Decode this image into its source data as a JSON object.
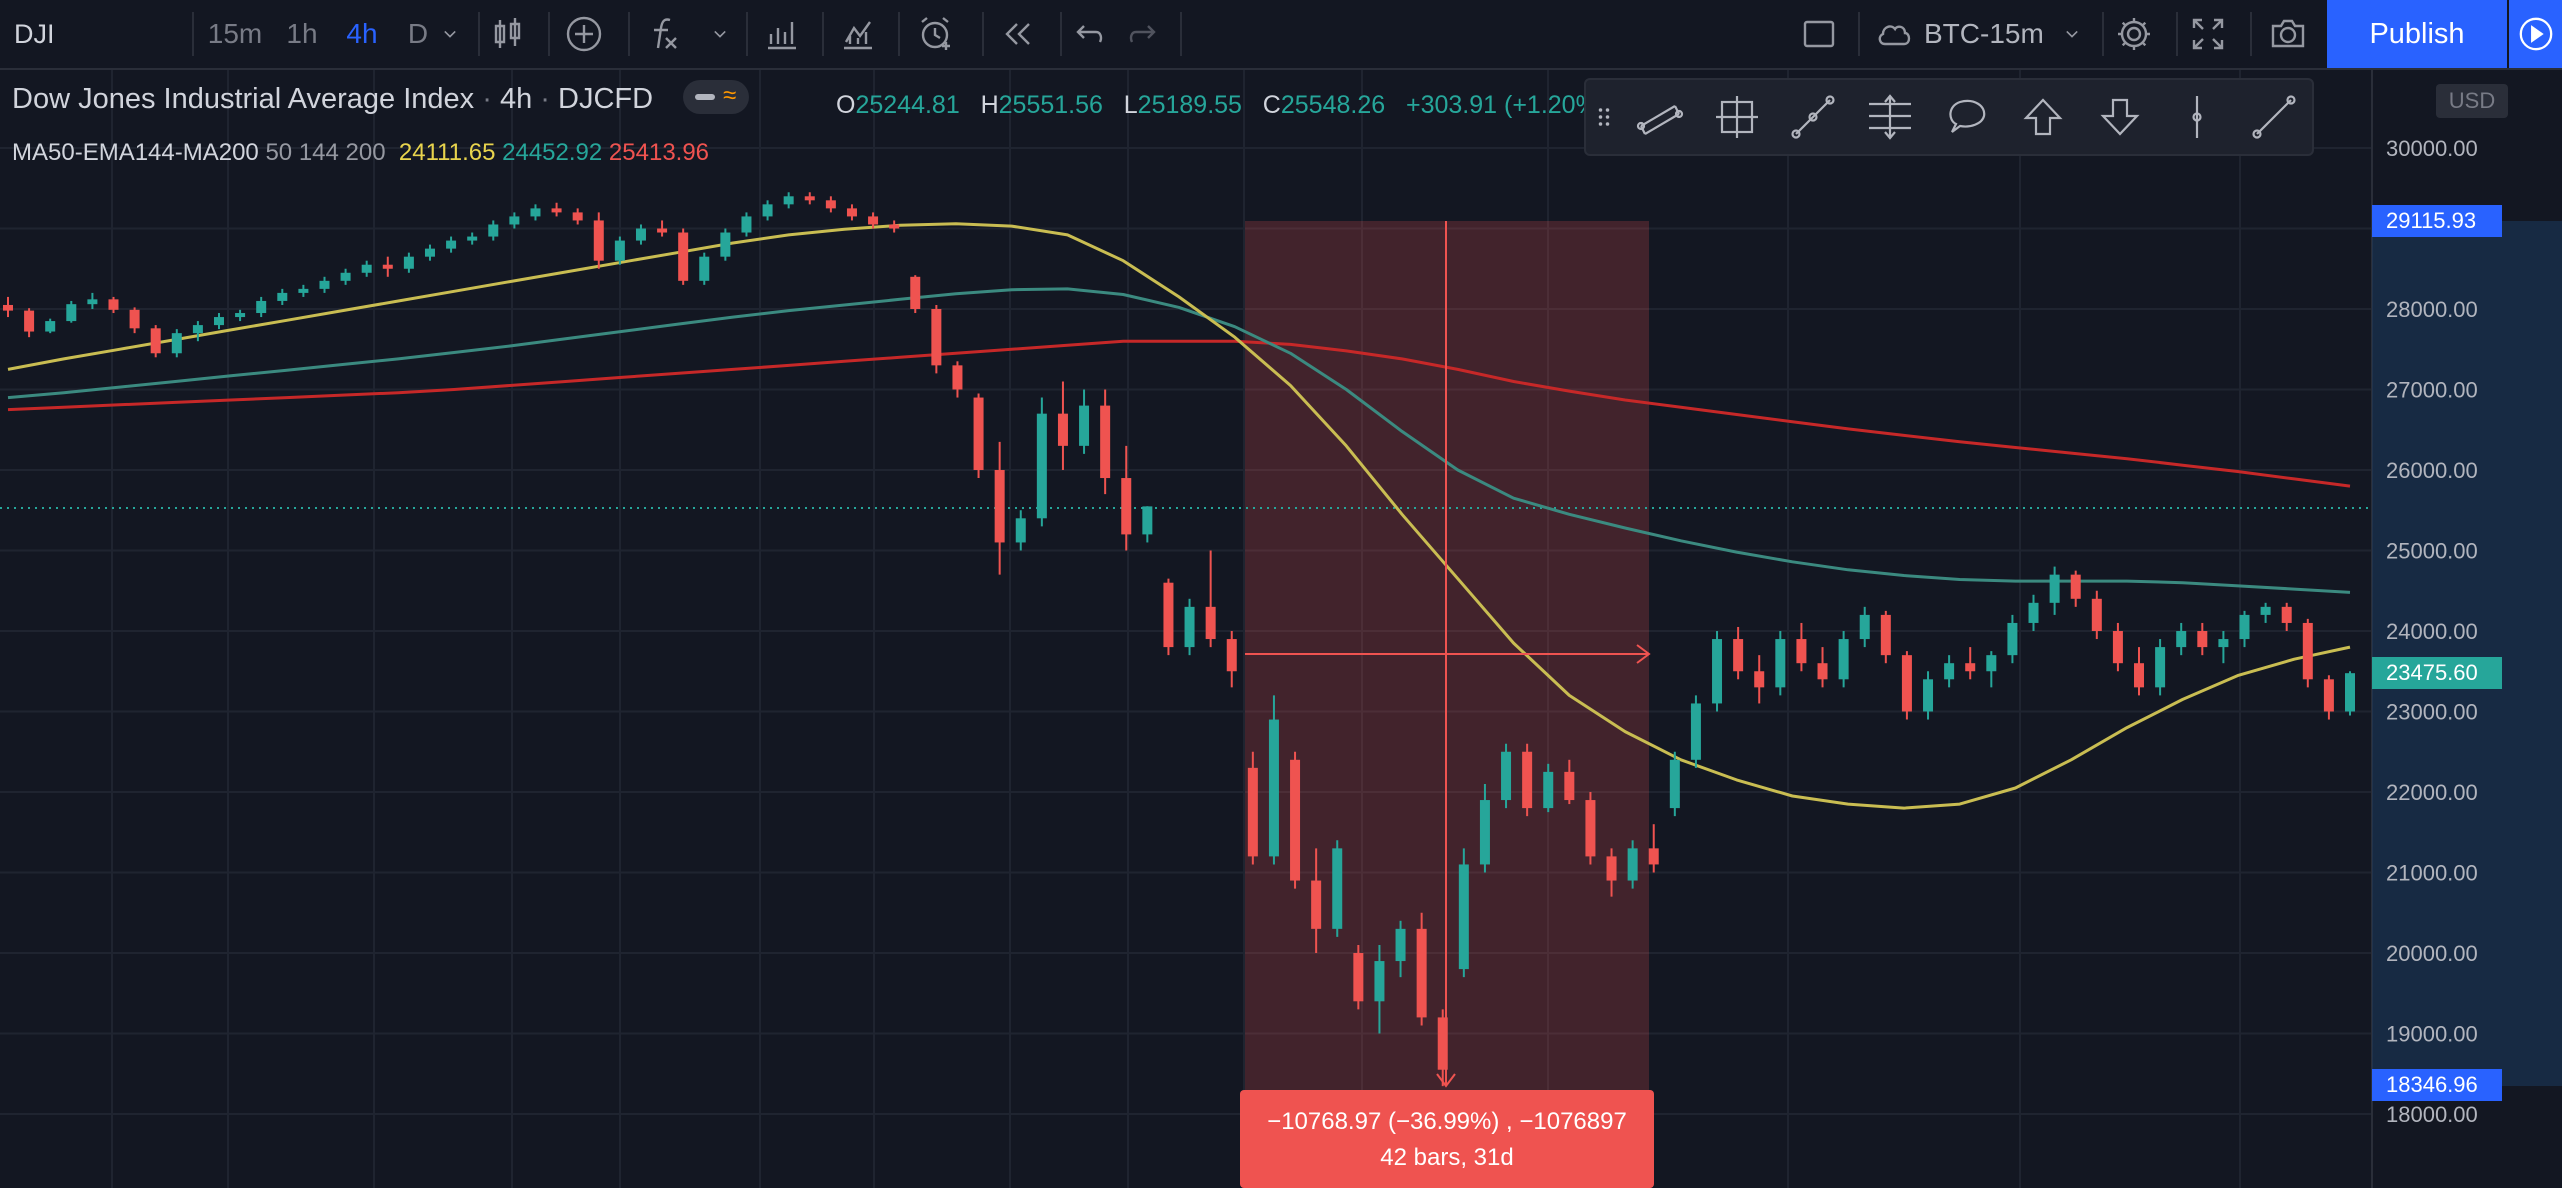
{
  "toolbar": {
    "symbol": "DJI",
    "intervals": [
      "15m",
      "1h",
      "4h",
      "D"
    ],
    "active_interval": "4h",
    "layout_name": "BTC-15m",
    "publish_label": "Publish"
  },
  "legend": {
    "title": "Dow Jones Industrial Average Index",
    "interval": "4h",
    "exchange": "DJCFD",
    "open_label": "O",
    "open": "25244.81",
    "high_label": "H",
    "high": "25551.56",
    "low_label": "L",
    "low": "25189.55",
    "close_label": "C",
    "close": "25548.26",
    "change": "+303.91 (+1.20%)",
    "indicator_name": "MA50-EMA144-MA200",
    "indicator_params": "50 144 200",
    "ma50_value": "24111.65",
    "ema144_value": "24452.92",
    "ma200_value": "25413.96"
  },
  "price_scale": {
    "currency": "USD",
    "ticks": [
      "30000.00",
      "28000.00",
      "27000.00",
      "26000.00",
      "25000.00",
      "24000.00",
      "23000.00",
      "22000.00",
      "21000.00",
      "20000.00",
      "19000.00",
      "18000.00"
    ],
    "label_high": "29115.93",
    "label_last": "23475.60",
    "label_low": "18346.96"
  },
  "measure_tool": {
    "line1": "−10768.97 (−36.99%) , −1076897",
    "line2": "42 bars, 31d"
  },
  "colors": {
    "background": "#131722",
    "up": "#26a69a",
    "down": "#ef5350",
    "ma50": "#c9bd52",
    "ema144": "#3b8a80",
    "ma200": "#c62828",
    "accent": "#2962ff"
  },
  "drawing_tools": [
    "trend-angle",
    "fixed-range-volume",
    "path",
    "fib-retracement",
    "callout",
    "arrow-up",
    "arrow-down",
    "vertical-line",
    "ray"
  ],
  "chart_data": {
    "type": "candlestick",
    "y_range": [
      17700,
      30650
    ],
    "price_levels": {
      "high": 29115.93,
      "last": 23475.6,
      "low": 18346.96,
      "dotted_line": 25548.26
    },
    "candles_ohlc": [
      [
        28050,
        28150,
        27900,
        27980
      ],
      [
        27980,
        28010,
        27650,
        27720
      ],
      [
        27720,
        27880,
        27700,
        27850
      ],
      [
        27850,
        28100,
        27830,
        28060
      ],
      [
        28060,
        28200,
        28000,
        28120
      ],
      [
        28120,
        28150,
        27950,
        27990
      ],
      [
        27990,
        28020,
        27700,
        27760
      ],
      [
        27760,
        27800,
        27400,
        27450
      ],
      [
        27450,
        27750,
        27400,
        27700
      ],
      [
        27700,
        27850,
        27600,
        27800
      ],
      [
        27800,
        27950,
        27750,
        27900
      ],
      [
        27900,
        27990,
        27850,
        27950
      ],
      [
        27950,
        28150,
        27900,
        28100
      ],
      [
        28100,
        28250,
        28050,
        28200
      ],
      [
        28200,
        28300,
        28150,
        28250
      ],
      [
        28250,
        28400,
        28200,
        28350
      ],
      [
        28350,
        28500,
        28300,
        28450
      ],
      [
        28450,
        28600,
        28400,
        28550
      ],
      [
        28550,
        28650,
        28400,
        28500
      ],
      [
        28500,
        28700,
        28450,
        28650
      ],
      [
        28650,
        28800,
        28600,
        28750
      ],
      [
        28750,
        28900,
        28700,
        28850
      ],
      [
        28850,
        28950,
        28800,
        28900
      ],
      [
        28900,
        29100,
        28850,
        29050
      ],
      [
        29050,
        29200,
        29000,
        29150
      ],
      [
        29150,
        29300,
        29100,
        29250
      ],
      [
        29250,
        29320,
        29150,
        29200
      ],
      [
        29200,
        29250,
        29050,
        29100
      ],
      [
        29100,
        29200,
        28500,
        28600
      ],
      [
        28600,
        28900,
        28550,
        28850
      ],
      [
        28850,
        29050,
        28800,
        29000
      ],
      [
        29000,
        29100,
        28900,
        28950
      ],
      [
        28950,
        29000,
        28300,
        28350
      ],
      [
        28350,
        28700,
        28300,
        28650
      ],
      [
        28650,
        29000,
        28600,
        28950
      ],
      [
        28950,
        29200,
        28900,
        29150
      ],
      [
        29150,
        29350,
        29100,
        29300
      ],
      [
        29300,
        29450,
        29250,
        29400
      ],
      [
        29400,
        29450,
        29300,
        29350
      ],
      [
        29350,
        29400,
        29200,
        29250
      ],
      [
        29250,
        29300,
        29100,
        29150
      ],
      [
        29150,
        29200,
        29000,
        29050
      ],
      [
        29050,
        29100,
        28950,
        29000
      ],
      [
        28400,
        28420,
        27950,
        28000
      ],
      [
        28000,
        28050,
        27200,
        27300
      ],
      [
        27300,
        27350,
        26900,
        27000
      ],
      [
        26900,
        26950,
        25900,
        26000
      ],
      [
        26000,
        26350,
        24700,
        25100
      ],
      [
        25100,
        25500,
        25000,
        25400
      ],
      [
        25400,
        26900,
        25300,
        26700
      ],
      [
        26700,
        27100,
        26000,
        26300
      ],
      [
        26300,
        27000,
        26200,
        26800
      ],
      [
        26800,
        27000,
        25700,
        25900
      ],
      [
        25900,
        26300,
        25000,
        25200
      ],
      [
        25200,
        25550,
        25100,
        25548
      ],
      [
        24600,
        24650,
        23700,
        23800
      ],
      [
        23800,
        24400,
        23700,
        24300
      ],
      [
        24300,
        25000,
        23800,
        23900
      ],
      [
        23900,
        24000,
        23300,
        23500
      ],
      [
        22300,
        22500,
        21100,
        21200
      ],
      [
        21200,
        23200,
        21100,
        22900
      ],
      [
        22400,
        22500,
        20800,
        20900
      ],
      [
        20900,
        21300,
        20000,
        20300
      ],
      [
        20300,
        21400,
        20200,
        21300
      ],
      [
        20000,
        20100,
        19300,
        19400
      ],
      [
        19400,
        20100,
        19000,
        19900
      ],
      [
        19900,
        20400,
        19700,
        20300
      ],
      [
        20300,
        20500,
        19100,
        19200
      ],
      [
        19200,
        19300,
        18346,
        18550
      ],
      [
        19800,
        21300,
        19700,
        21100
      ],
      [
        21100,
        22100,
        21000,
        21900
      ],
      [
        21900,
        22600,
        21800,
        22500
      ],
      [
        22500,
        22600,
        21700,
        21800
      ],
      [
        21800,
        22350,
        21750,
        22250
      ],
      [
        22250,
        22400,
        21850,
        21900
      ],
      [
        21900,
        22000,
        21100,
        21200
      ],
      [
        21200,
        21300,
        20700,
        20900
      ],
      [
        20900,
        21400,
        20800,
        21300
      ],
      [
        21300,
        21600,
        21000,
        21100
      ],
      [
        21800,
        22500,
        21700,
        22400
      ],
      [
        22400,
        23200,
        22300,
        23100
      ],
      [
        23100,
        24000,
        23000,
        23900
      ],
      [
        23900,
        24050,
        23400,
        23500
      ],
      [
        23500,
        23700,
        23100,
        23300
      ],
      [
        23300,
        24000,
        23200,
        23900
      ],
      [
        23900,
        24100,
        23500,
        23600
      ],
      [
        23600,
        23800,
        23300,
        23400
      ],
      [
        23400,
        24000,
        23300,
        23900
      ],
      [
        23900,
        24300,
        23800,
        24200
      ],
      [
        24200,
        24250,
        23600,
        23700
      ],
      [
        23700,
        23750,
        22900,
        23000
      ],
      [
        23000,
        23500,
        22900,
        23400
      ],
      [
        23400,
        23700,
        23300,
        23600
      ],
      [
        23600,
        23800,
        23400,
        23500
      ],
      [
        23500,
        23750,
        23300,
        23700
      ],
      [
        23700,
        24200,
        23600,
        24100
      ],
      [
        24100,
        24450,
        24000,
        24350
      ],
      [
        24350,
        24800,
        24200,
        24700
      ],
      [
        24700,
        24750,
        24300,
        24400
      ],
      [
        24400,
        24500,
        23900,
        24000
      ],
      [
        24000,
        24100,
        23500,
        23600
      ],
      [
        23600,
        23800,
        23200,
        23300
      ],
      [
        23300,
        23900,
        23200,
        23800
      ],
      [
        23800,
        24100,
        23700,
        24000
      ],
      [
        24000,
        24100,
        23700,
        23800
      ],
      [
        23800,
        24000,
        23600,
        23900
      ],
      [
        23900,
        24250,
        23800,
        24200
      ],
      [
        24200,
        24350,
        24100,
        24300
      ],
      [
        24300,
        24350,
        24000,
        24100
      ],
      [
        24100,
        24150,
        23300,
        23400
      ],
      [
        23400,
        23450,
        22900,
        23000
      ],
      [
        23000,
        23500,
        22950,
        23476
      ]
    ],
    "ma50": [
      27250,
      27380,
      27500,
      27620,
      27740,
      27860,
      27980,
      28100,
      28220,
      28340,
      28460,
      28580,
      28700,
      28820,
      28920,
      28990,
      29040,
      29060,
      29030,
      28920,
      28600,
      28150,
      27650,
      27050,
      26300,
      25450,
      24650,
      23850,
      23200,
      22750,
      22400,
      22150,
      21950,
      21850,
      21800,
      21850,
      22050,
      22400,
      22800,
      23150,
      23450,
      23650,
      23800
    ],
    "ema144": [
      26900,
      26960,
      27030,
      27100,
      27170,
      27240,
      27310,
      27380,
      27460,
      27540,
      27630,
      27720,
      27810,
      27900,
      27980,
      28050,
      28120,
      28190,
      28240,
      28250,
      28180,
      28020,
      27780,
      27450,
      27000,
      26480,
      26000,
      25650,
      25450,
      25280,
      25120,
      24980,
      24860,
      24760,
      24690,
      24640,
      24620,
      24620,
      24620,
      24600,
      24560,
      24520,
      24480
    ],
    "ma200": [
      26750,
      26780,
      26810,
      26840,
      26870,
      26900,
      26930,
      26960,
      27000,
      27050,
      27100,
      27150,
      27200,
      27250,
      27300,
      27350,
      27400,
      27450,
      27500,
      27550,
      27600,
      27600,
      27600,
      27560,
      27480,
      27380,
      27250,
      27100,
      26980,
      26870,
      26780,
      26690,
      26600,
      26510,
      26430,
      26350,
      26280,
      26210,
      26140,
      26060,
      25980,
      25890,
      25800
    ]
  }
}
